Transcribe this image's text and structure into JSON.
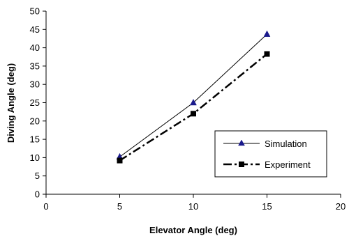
{
  "chart_data": {
    "type": "line",
    "xlabel": "Elevator Angle (deg)",
    "ylabel": "Diving Angle (deg)",
    "xlim": [
      0,
      20
    ],
    "ylim": [
      0,
      50
    ],
    "x_ticks": [
      0,
      5,
      10,
      15,
      20
    ],
    "y_ticks": [
      0,
      5,
      10,
      15,
      20,
      25,
      30,
      35,
      40,
      45,
      50
    ],
    "grid": false,
    "legend_position": "bottom-right",
    "series": [
      {
        "name": "Simulation",
        "x": [
          5,
          10,
          15
        ],
        "y": [
          10.2,
          25,
          43.7
        ],
        "marker": "triangle",
        "line_style": "solid",
        "color": "#000000",
        "marker_color": "#1a1a8c"
      },
      {
        "name": "Experiment",
        "x": [
          5,
          10,
          15
        ],
        "y": [
          9.2,
          22,
          38.3
        ],
        "marker": "square",
        "line_style": "dash-dot",
        "color": "#000000",
        "marker_color": "#000000"
      }
    ]
  }
}
